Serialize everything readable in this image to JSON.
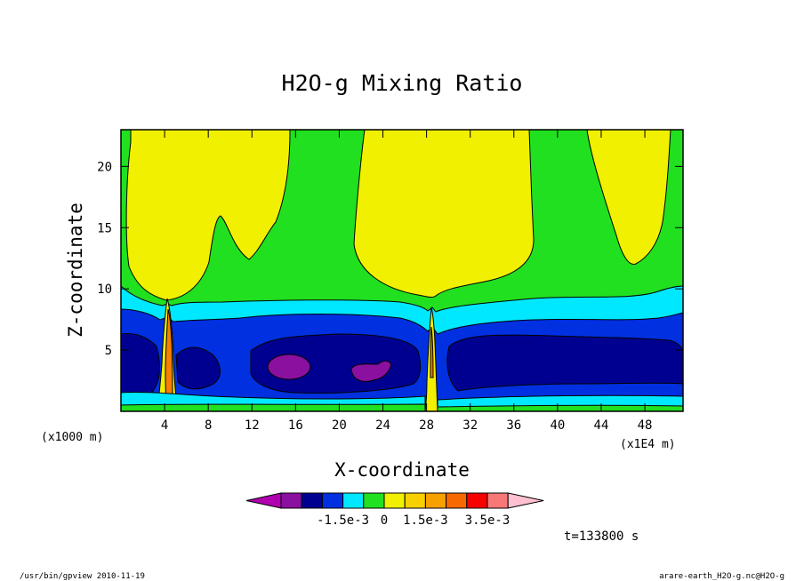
{
  "chart_data": {
    "type": "contour",
    "title": "H2O-g Mixing Ratio",
    "xlabel": "X-coordinate",
    "ylabel": "Z-coordinate",
    "xlabel_unit": "(x1000 m)",
    "x_scale_note": "(x1E4 m)",
    "xlim": [
      0,
      51.5
    ],
    "ylim": [
      0,
      23
    ],
    "x_ticks": [
      4,
      8,
      12,
      16,
      20,
      24,
      28,
      32,
      36,
      40,
      44,
      48
    ],
    "y_ticks": [
      5,
      10,
      15,
      20
    ],
    "colorbar": {
      "colors": [
        "#b000b0",
        "#8a10a0",
        "#000090",
        "#0030e0",
        "#00e8ff",
        "#20e020",
        "#f0f000",
        "#f8d000",
        "#f8a000",
        "#f86800",
        "#f80000",
        "#f87878",
        "#ffc0d0"
      ],
      "labels": [
        "-1.5e-3",
        "0",
        "1.5e-3",
        "3.5e-3"
      ],
      "label_bounds": [
        3,
        5,
        7,
        10
      ]
    },
    "time_label": "t=133800 s"
  },
  "footer": {
    "left": "/usr/bin/gpview   2010-11-19",
    "right": "arare-earth_H2O-g.nc@H2O-g"
  }
}
